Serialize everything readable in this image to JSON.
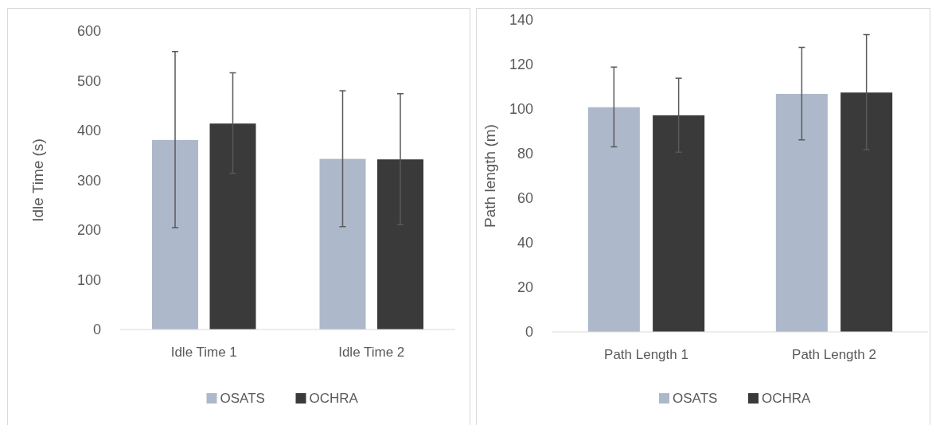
{
  "chart_data": [
    {
      "type": "bar",
      "ylabel": "Idle Time (s)",
      "categories": [
        "Idle Time 1",
        "Idle Time 2"
      ],
      "ylim": [
        0,
        600
      ],
      "yticks": [
        0,
        100,
        200,
        300,
        400,
        500,
        600
      ],
      "grid": false,
      "legend": "bottom",
      "series": [
        {
          "name": "OSATS",
          "color": "#adb9ca",
          "values": [
            381,
            343
          ],
          "errors": [
            [
              205,
              559
            ],
            [
              207,
              480
            ]
          ]
        },
        {
          "name": "OCHRA",
          "color": "#3a3a3a",
          "values": [
            414,
            342
          ],
          "errors": [
            [
              314,
              516
            ],
            [
              211,
              474
            ]
          ]
        }
      ]
    },
    {
      "type": "bar",
      "ylabel": "Path length (m)",
      "categories": [
        "Path Length 1",
        "Path Length 2"
      ],
      "ylim": [
        0,
        140
      ],
      "yticks": [
        0,
        20,
        40,
        60,
        80,
        100,
        120,
        140
      ],
      "grid": false,
      "legend": "bottom",
      "series": [
        {
          "name": "OSATS",
          "color": "#adb9ca",
          "values": [
            100.8,
            106.8
          ],
          "errors": [
            [
              83,
              118.8
            ],
            [
              86.2,
              127.7
            ]
          ]
        },
        {
          "name": "OCHRA",
          "color": "#3a3a3a",
          "values": [
            97.2,
            107.4
          ],
          "errors": [
            [
              80.6,
              113.8
            ],
            [
              81.8,
              133.4
            ]
          ]
        }
      ]
    }
  ]
}
